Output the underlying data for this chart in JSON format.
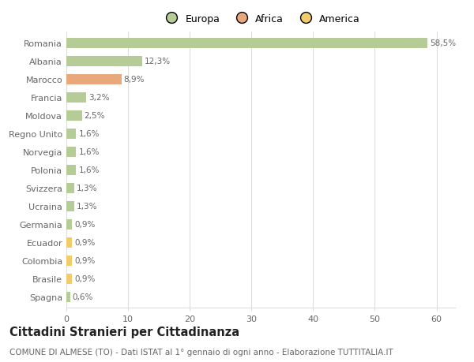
{
  "categories": [
    "Romania",
    "Albania",
    "Marocco",
    "Francia",
    "Moldova",
    "Regno Unito",
    "Norvegia",
    "Polonia",
    "Svizzera",
    "Ucraina",
    "Germania",
    "Ecuador",
    "Colombia",
    "Brasile",
    "Spagna"
  ],
  "values": [
    58.5,
    12.3,
    8.9,
    3.2,
    2.5,
    1.6,
    1.6,
    1.6,
    1.3,
    1.3,
    0.9,
    0.9,
    0.9,
    0.9,
    0.6
  ],
  "labels": [
    "58,5%",
    "12,3%",
    "8,9%",
    "3,2%",
    "2,5%",
    "1,6%",
    "1,6%",
    "1,6%",
    "1,3%",
    "1,3%",
    "0,9%",
    "0,9%",
    "0,9%",
    "0,9%",
    "0,6%"
  ],
  "continents": [
    "Europa",
    "Europa",
    "Africa",
    "Europa",
    "Europa",
    "Europa",
    "Europa",
    "Europa",
    "Europa",
    "Europa",
    "Europa",
    "America",
    "America",
    "America",
    "Europa"
  ],
  "colors": {
    "Europa": "#b5cc96",
    "Africa": "#e8a87c",
    "America": "#f2cc6a"
  },
  "legend_entries": [
    "Europa",
    "Africa",
    "America"
  ],
  "legend_colors": [
    "#b5cc96",
    "#e8a87c",
    "#f2cc6a"
  ],
  "xlim": [
    0,
    63
  ],
  "xticks": [
    0,
    10,
    20,
    30,
    40,
    50,
    60
  ],
  "title_bold": "Cittadini Stranieri per Cittadinanza",
  "subtitle": "COMUNE DI ALMESE (TO) - Dati ISTAT al 1° gennaio di ogni anno - Elaborazione TUTTITALIA.IT",
  "background_color": "#ffffff",
  "grid_color": "#dddddd",
  "label_fontsize": 7.5,
  "ytick_fontsize": 8,
  "xtick_fontsize": 8,
  "title_fontsize": 10.5,
  "subtitle_fontsize": 7.5,
  "bar_height": 0.55
}
